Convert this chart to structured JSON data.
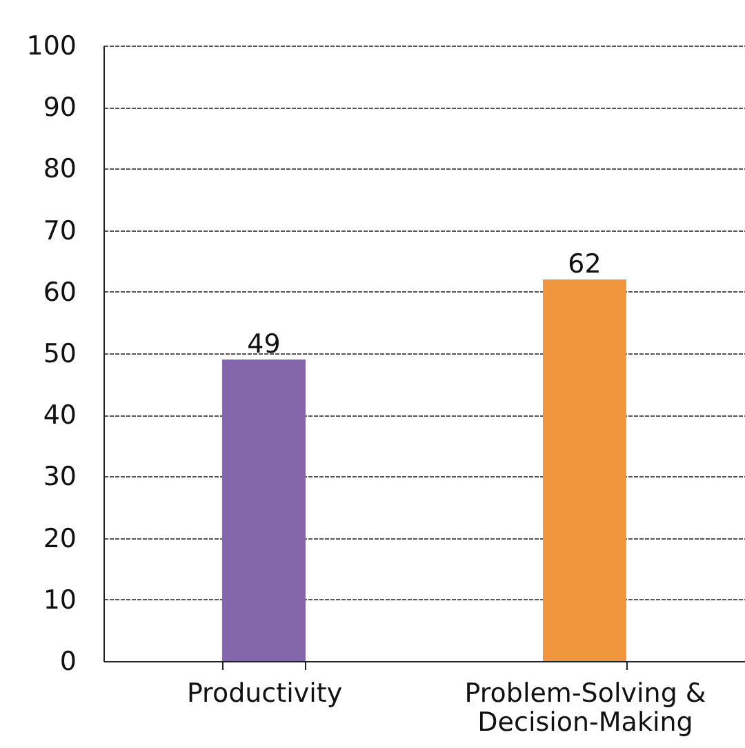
{
  "chart_data": {
    "type": "bar",
    "categories": [
      "Productivity",
      "Problem-Solving & Decision-Making"
    ],
    "values": [
      49,
      62
    ],
    "colors": [
      "#8466ab",
      "#f0963c"
    ],
    "ylim": [
      0,
      100
    ],
    "yticks": [
      0,
      10,
      20,
      30,
      40,
      50,
      60,
      70,
      80,
      90,
      100
    ],
    "grid": "y",
    "data_labels": true
  }
}
